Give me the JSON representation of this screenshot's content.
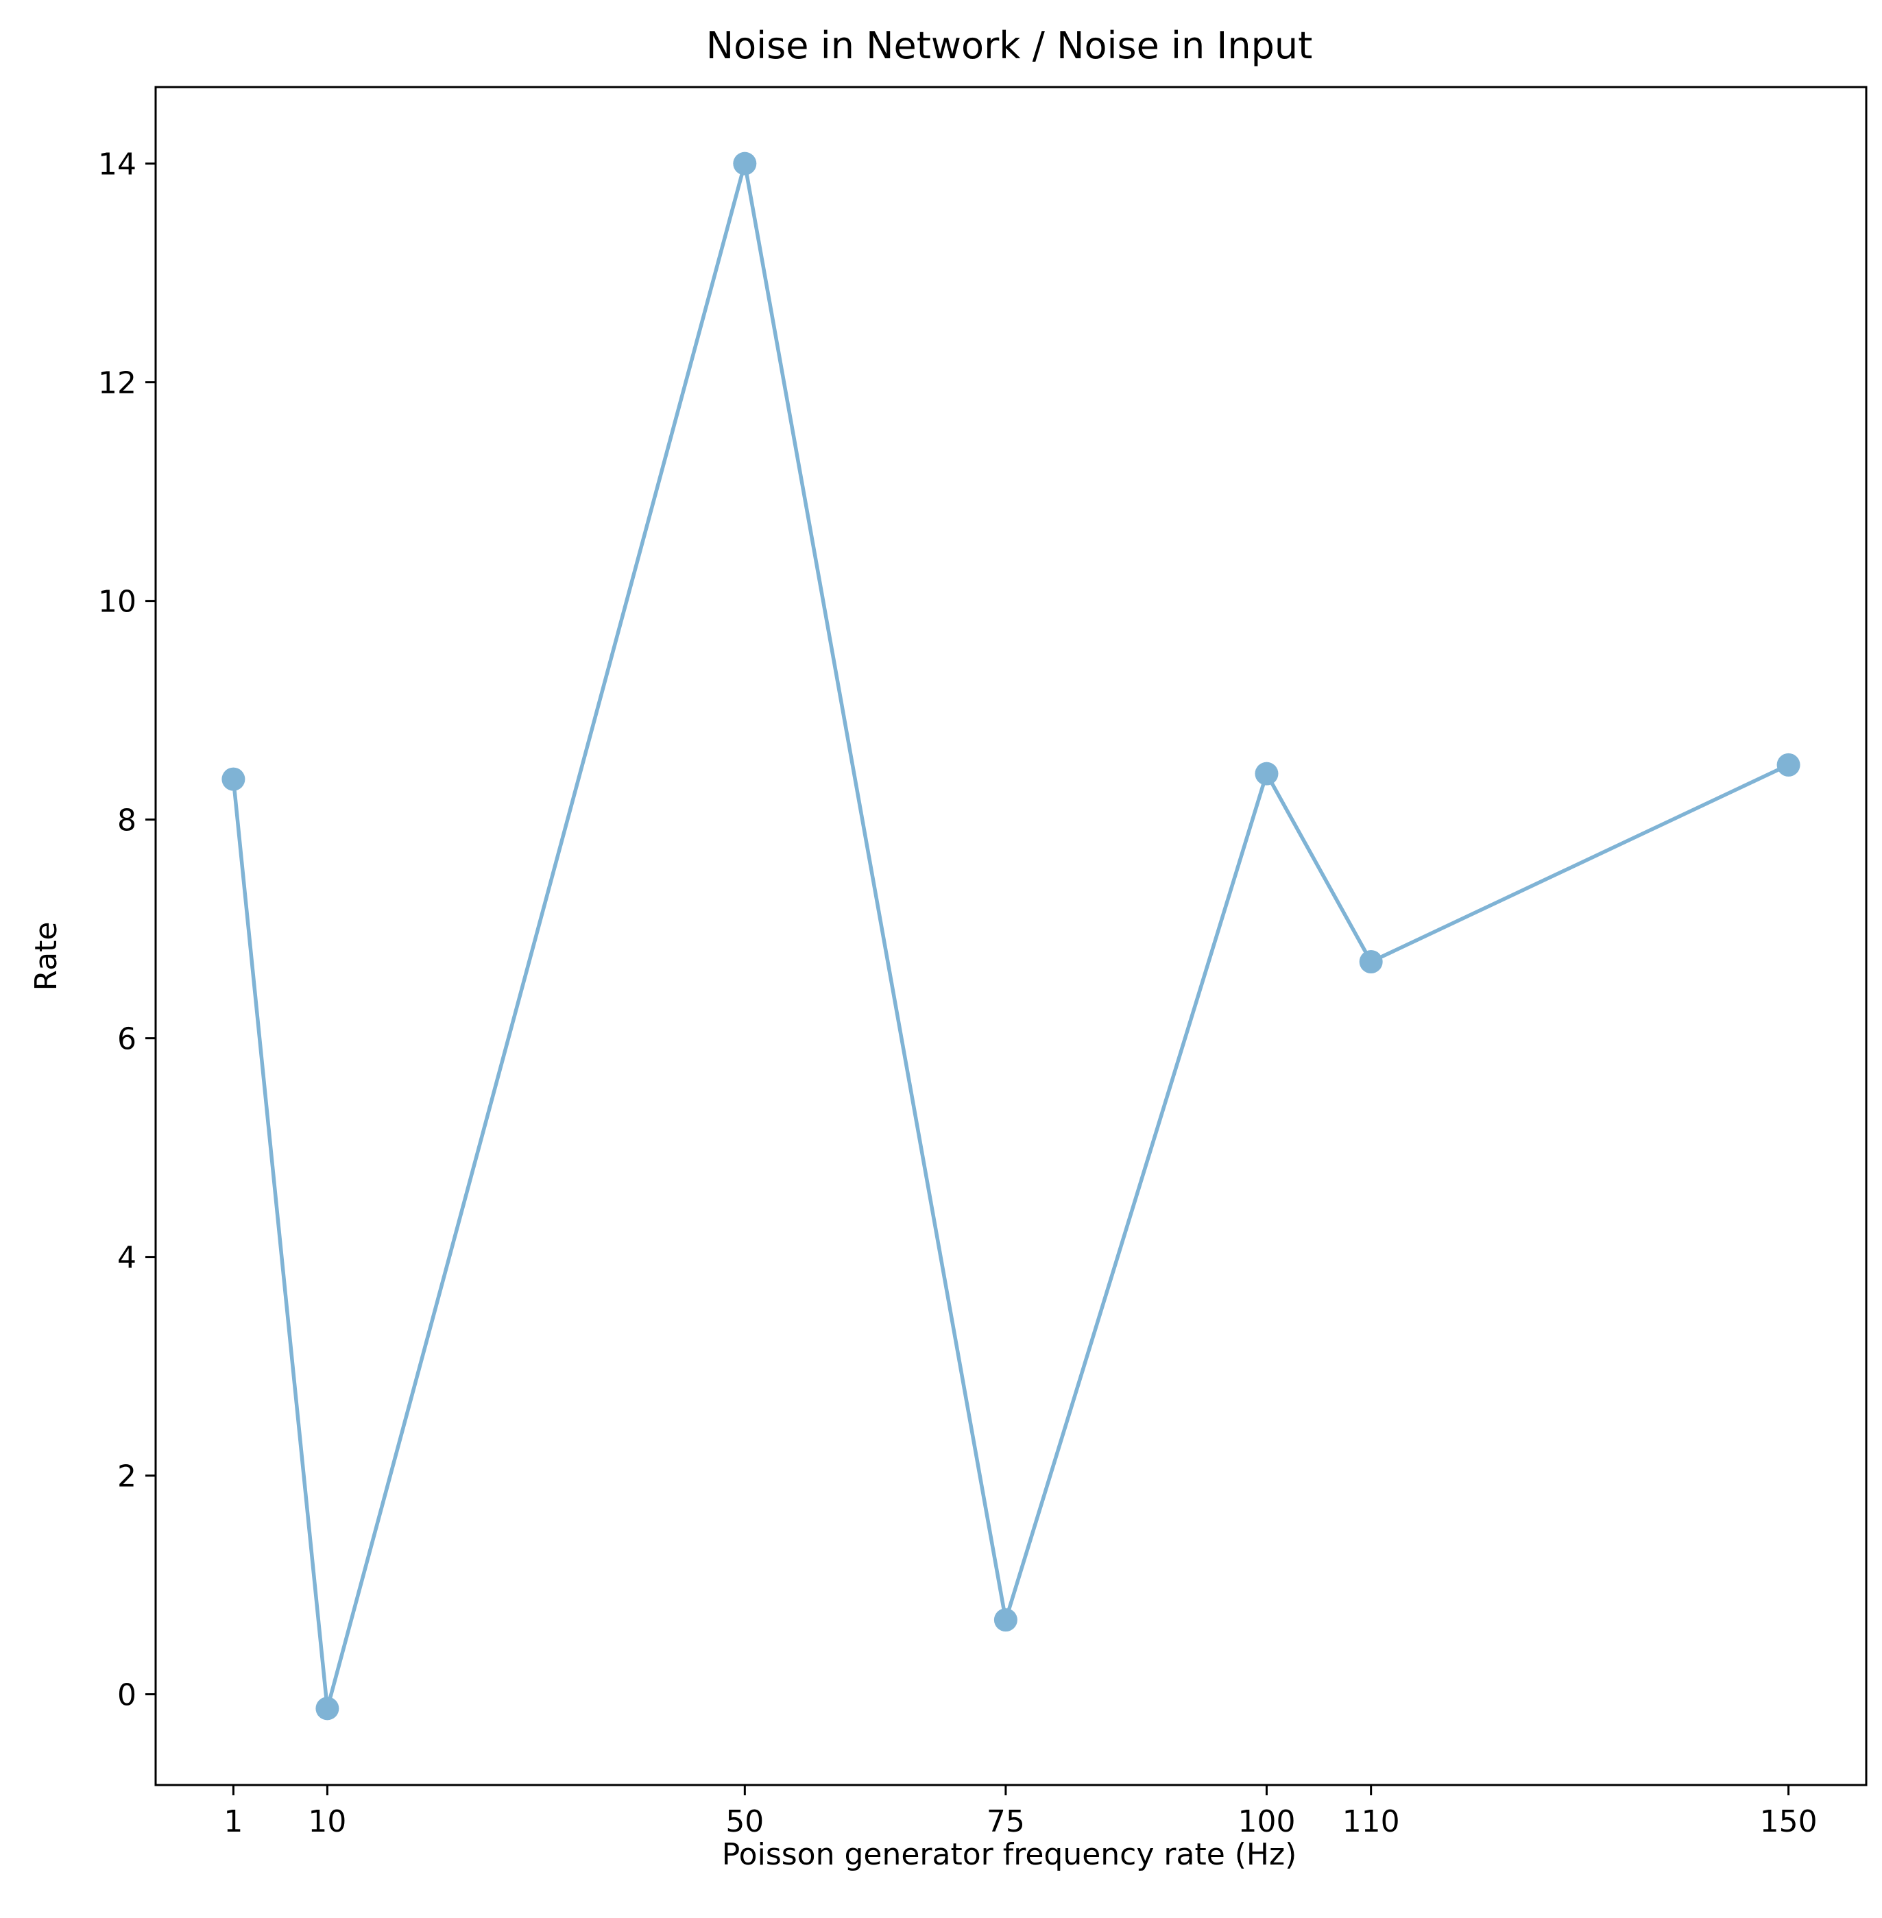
{
  "chart_data": {
    "type": "line",
    "title": "Noise in Network / Noise in Input",
    "xlabel": "Poisson generator frequency rate (Hz)",
    "ylabel": "Rate",
    "x": [
      1,
      10,
      50,
      75,
      100,
      110,
      150
    ],
    "series": [
      {
        "values": [
          8.37,
          -0.13,
          14.0,
          0.68,
          8.42,
          6.7,
          8.5
        ],
        "color": "#7fb3d5",
        "marker": "circle"
      }
    ],
    "x_ticks": [
      1,
      10,
      50,
      75,
      100,
      110,
      150
    ],
    "x_tick_labels": [
      "1",
      "10",
      "50",
      "75",
      "100",
      "110",
      "150"
    ],
    "y_ticks": [
      0,
      2,
      4,
      6,
      8,
      10,
      12,
      14
    ],
    "y_tick_labels": [
      "0",
      "2",
      "4",
      "6",
      "8",
      "10",
      "12",
      "14"
    ],
    "xlim": [
      -6.45,
      157.45
    ],
    "ylim": [
      -0.83,
      14.7
    ],
    "grid": false,
    "legend": "none"
  }
}
